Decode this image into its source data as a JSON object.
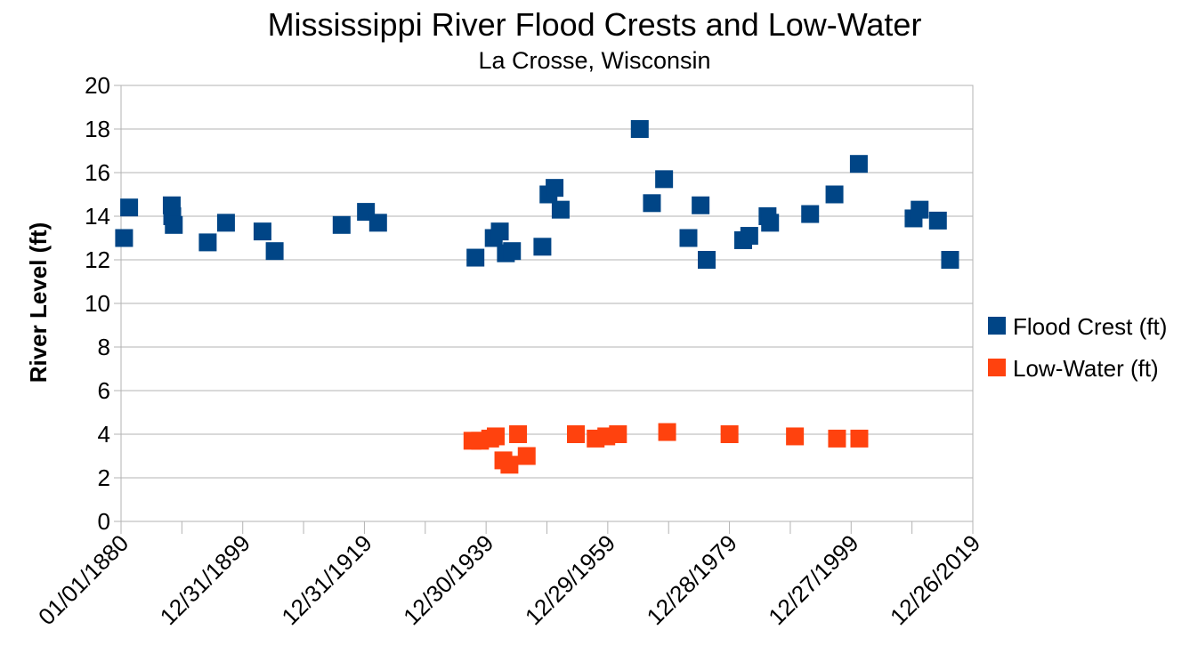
{
  "chart_data": {
    "type": "scatter",
    "title": "Mississippi River Flood Crests and Low-Water",
    "subtitle": "La Crosse, Wisconsin",
    "xlabel": "",
    "ylabel": "River Level (ft)",
    "ylim": [
      0,
      20
    ],
    "yticks": [
      "0",
      "2",
      "4",
      "6",
      "8",
      "10",
      "12",
      "14",
      "16",
      "18",
      "20"
    ],
    "xlim": [
      "1880-01-01",
      "2019-12-26"
    ],
    "xtick_labels": [
      "01/01/1880",
      "12/31/1899",
      "12/31/1919",
      "12/30/1939",
      "12/29/1959",
      "12/28/1979",
      "12/27/1999",
      "12/26/2019"
    ],
    "legend_position": "right",
    "grid": true,
    "series": [
      {
        "name": "Flood Crest (ft)",
        "color": "#004586",
        "points": [
          [
            "1880-07-01",
            13.0
          ],
          [
            "1881-05-01",
            14.4
          ],
          [
            "1888-05-01",
            14.5
          ],
          [
            "1888-06-01",
            14.0
          ],
          [
            "1888-09-01",
            13.6
          ],
          [
            "1894-04-01",
            12.8
          ],
          [
            "1897-04-01",
            13.7
          ],
          [
            "1903-04-01",
            13.3
          ],
          [
            "1905-04-01",
            12.4
          ],
          [
            "1916-04-01",
            13.6
          ],
          [
            "1920-04-01",
            14.2
          ],
          [
            "1922-04-01",
            13.7
          ],
          [
            "1938-04-01",
            12.1
          ],
          [
            "1941-04-01",
            13.0
          ],
          [
            "1942-04-01",
            13.3
          ],
          [
            "1943-04-01",
            12.3
          ],
          [
            "1944-04-01",
            12.4
          ],
          [
            "1949-04-01",
            12.6
          ],
          [
            "1950-04-01",
            15.0
          ],
          [
            "1951-04-01",
            15.3
          ],
          [
            "1952-04-01",
            14.3
          ],
          [
            "1965-04-01",
            18.0
          ],
          [
            "1967-04-01",
            14.6
          ],
          [
            "1969-04-01",
            15.7
          ],
          [
            "1973-04-01",
            13.0
          ],
          [
            "1975-04-01",
            14.5
          ],
          [
            "1976-04-01",
            12.0
          ],
          [
            "1982-04-01",
            12.9
          ],
          [
            "1983-04-01",
            13.1
          ],
          [
            "1986-04-01",
            14.0
          ],
          [
            "1986-09-01",
            13.7
          ],
          [
            "1993-04-01",
            14.1
          ],
          [
            "1997-04-01",
            15.0
          ],
          [
            "2001-04-01",
            16.4
          ],
          [
            "2010-04-01",
            13.9
          ],
          [
            "2011-04-01",
            14.3
          ],
          [
            "2014-04-01",
            13.8
          ],
          [
            "2016-04-01",
            12.0
          ]
        ]
      },
      {
        "name": "Low-Water (ft)",
        "color": "#ff420e",
        "points": [
          [
            "1937-10-01",
            3.7
          ],
          [
            "1939-01-01",
            3.7
          ],
          [
            "1940-09-01",
            3.8
          ],
          [
            "1941-08-01",
            3.9
          ],
          [
            "1942-11-01",
            2.8
          ],
          [
            "1943-11-01",
            2.6
          ],
          [
            "1945-04-01",
            4.0
          ],
          [
            "1946-09-01",
            3.0
          ],
          [
            "1954-10-01",
            4.0
          ],
          [
            "1958-01-01",
            3.8
          ],
          [
            "1959-10-01",
            3.9
          ],
          [
            "1961-09-01",
            4.0
          ],
          [
            "1969-10-01",
            4.1
          ],
          [
            "1980-01-01",
            4.0
          ],
          [
            "1990-10-01",
            3.9
          ],
          [
            "1997-09-01",
            3.8
          ],
          [
            "2001-05-01",
            3.8
          ]
        ]
      }
    ]
  }
}
